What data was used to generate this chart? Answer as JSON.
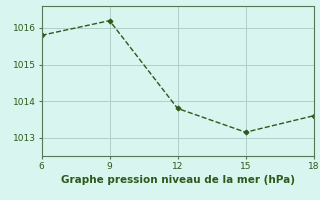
{
  "x": [
    6,
    9,
    12,
    15,
    18
  ],
  "y": [
    1015.8,
    1016.2,
    1013.8,
    1013.15,
    1013.6
  ],
  "xlim": [
    6,
    18
  ],
  "ylim": [
    1012.5,
    1016.6
  ],
  "xticks": [
    6,
    9,
    12,
    15,
    18
  ],
  "yticks": [
    1013,
    1014,
    1015,
    1016
  ],
  "xlabel": "Graphe pression niveau de la mer (hPa)",
  "line_color": "#2d5a1b",
  "marker": "D",
  "markersize": 2.5,
  "linewidth": 1.0,
  "bg_color": "#d8f5f0",
  "grid_color": "#b0cfcb",
  "label_fontsize": 7.5,
  "tick_fontsize": 6.5
}
